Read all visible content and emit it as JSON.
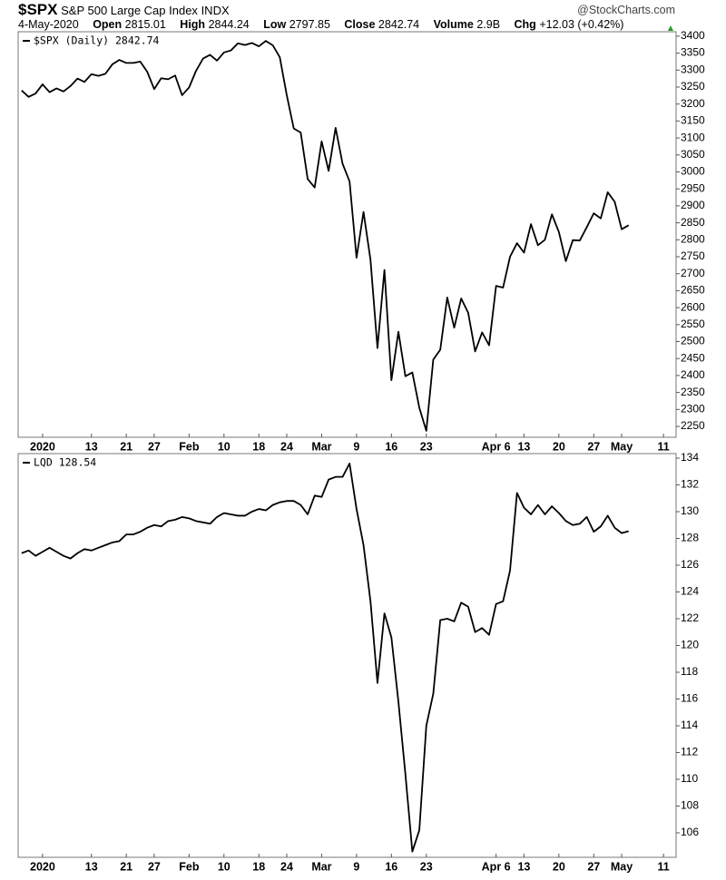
{
  "header": {
    "symbol": "$SPX",
    "description": "S&P 500 Large Cap Index",
    "exchange": "INDX",
    "brand": "@StockCharts.com",
    "date": "4-May-2020",
    "open_label": "Open",
    "open": "2815.01",
    "high_label": "High",
    "high": "2844.24",
    "low_label": "Low",
    "low": "2797.85",
    "close_label": "Close",
    "close": "2842.74",
    "volume_label": "Volume",
    "volume": "2.9B",
    "chg_label": "Chg",
    "chg": "+12.03 (+0.42%)"
  },
  "chart_data": [
    {
      "type": "line",
      "series": [
        {
          "name": "$SPX (Daily) 2842.74",
          "color": "#000000",
          "values": [
            3240,
            3221,
            3231,
            3258,
            3235,
            3246,
            3237,
            3253,
            3275,
            3265,
            3288,
            3283,
            3289,
            3317,
            3330,
            3321,
            3321,
            3325,
            3295,
            3244,
            3276,
            3273,
            3284,
            3226,
            3249,
            3298,
            3334,
            3345,
            3328,
            3352,
            3358,
            3379,
            3374,
            3380,
            3370,
            3386,
            3373,
            3338,
            3226,
            3128,
            3116,
            2979,
            2954,
            3090,
            3003,
            3130,
            3024,
            2972,
            2747,
            2882,
            2741,
            2481,
            2711,
            2386,
            2529,
            2398,
            2409,
            2305,
            2237,
            2447,
            2476,
            2630,
            2541,
            2627,
            2585,
            2471,
            2527,
            2489,
            2664,
            2659,
            2750,
            2790,
            2762,
            2846,
            2784,
            2800,
            2875,
            2823,
            2737,
            2799,
            2798,
            2837,
            2878,
            2863,
            2940,
            2912,
            2831,
            2842.74
          ]
        }
      ],
      "xlim": [
        -0.5,
        93.8
      ],
      "xticks": [
        {
          "value": 3,
          "label": "2020"
        },
        {
          "value": 10,
          "label": "13"
        },
        {
          "value": 15,
          "label": "21"
        },
        {
          "value": 19,
          "label": "27"
        },
        {
          "value": 24,
          "label": "Feb"
        },
        {
          "value": 29,
          "label": "10"
        },
        {
          "value": 34,
          "label": "18"
        },
        {
          "value": 38,
          "label": "24"
        },
        {
          "value": 43,
          "label": "Mar"
        },
        {
          "value": 48,
          "label": "9"
        },
        {
          "value": 53,
          "label": "16"
        },
        {
          "value": 58,
          "label": "23"
        },
        {
          "value": 68,
          "label": "Apr 6"
        },
        {
          "value": 72,
          "label": "13"
        },
        {
          "value": 77,
          "label": "20"
        },
        {
          "value": 82,
          "label": "27"
        },
        {
          "value": 86,
          "label": "May"
        },
        {
          "value": 92,
          "label": "11"
        }
      ],
      "ylim": [
        2218,
        3413
      ],
      "yticks": [
        2250,
        2300,
        2350,
        2400,
        2450,
        2500,
        2550,
        2600,
        2650,
        2700,
        2750,
        2800,
        2850,
        2900,
        2950,
        3000,
        3050,
        3100,
        3150,
        3200,
        3250,
        3300,
        3350,
        3400
      ]
    },
    {
      "type": "line",
      "series": [
        {
          "name": "LQD 128.54",
          "color": "#000000",
          "values": [
            126.9,
            127.1,
            126.7,
            127.0,
            127.3,
            127.0,
            126.7,
            126.5,
            126.9,
            127.2,
            127.1,
            127.3,
            127.5,
            127.7,
            127.8,
            128.3,
            128.3,
            128.5,
            128.8,
            129.0,
            128.9,
            129.3,
            129.4,
            129.6,
            129.5,
            129.3,
            129.2,
            129.1,
            129.6,
            129.9,
            129.8,
            129.7,
            129.7,
            130.0,
            130.2,
            130.1,
            130.5,
            130.7,
            130.8,
            130.8,
            130.5,
            129.8,
            131.2,
            131.1,
            132.4,
            132.6,
            132.6,
            133.6,
            130.2,
            127.5,
            123.3,
            117.2,
            122.4,
            120.6,
            115.8,
            110.4,
            104.6,
            106.2,
            114.0,
            116.4,
            121.9,
            122.0,
            121.8,
            123.2,
            122.9,
            121.0,
            121.3,
            120.8,
            123.1,
            123.3,
            125.6,
            131.4,
            130.3,
            129.8,
            130.5,
            129.8,
            130.4,
            129.9,
            129.3,
            129.0,
            129.1,
            129.6,
            128.5,
            128.9,
            129.7,
            128.8,
            128.4,
            128.54
          ]
        }
      ],
      "xlim": [
        -0.5,
        93.8
      ],
      "xticks": [
        {
          "value": 3,
          "label": "2020"
        },
        {
          "value": 10,
          "label": "13"
        },
        {
          "value": 15,
          "label": "21"
        },
        {
          "value": 19,
          "label": "27"
        },
        {
          "value": 24,
          "label": "Feb"
        },
        {
          "value": 29,
          "label": "10"
        },
        {
          "value": 34,
          "label": "18"
        },
        {
          "value": 38,
          "label": "24"
        },
        {
          "value": 43,
          "label": "Mar"
        },
        {
          "value": 48,
          "label": "9"
        },
        {
          "value": 53,
          "label": "16"
        },
        {
          "value": 58,
          "label": "23"
        },
        {
          "value": 68,
          "label": "Apr 6"
        },
        {
          "value": 72,
          "label": "13"
        },
        {
          "value": 77,
          "label": "20"
        },
        {
          "value": 82,
          "label": "27"
        },
        {
          "value": 86,
          "label": "May"
        },
        {
          "value": 92,
          "label": "11"
        }
      ],
      "ylim": [
        104.17,
        134.34
      ],
      "yticks": [
        106,
        108,
        110,
        112,
        114,
        116,
        118,
        120,
        122,
        124,
        126,
        128,
        130,
        132,
        134
      ]
    }
  ]
}
